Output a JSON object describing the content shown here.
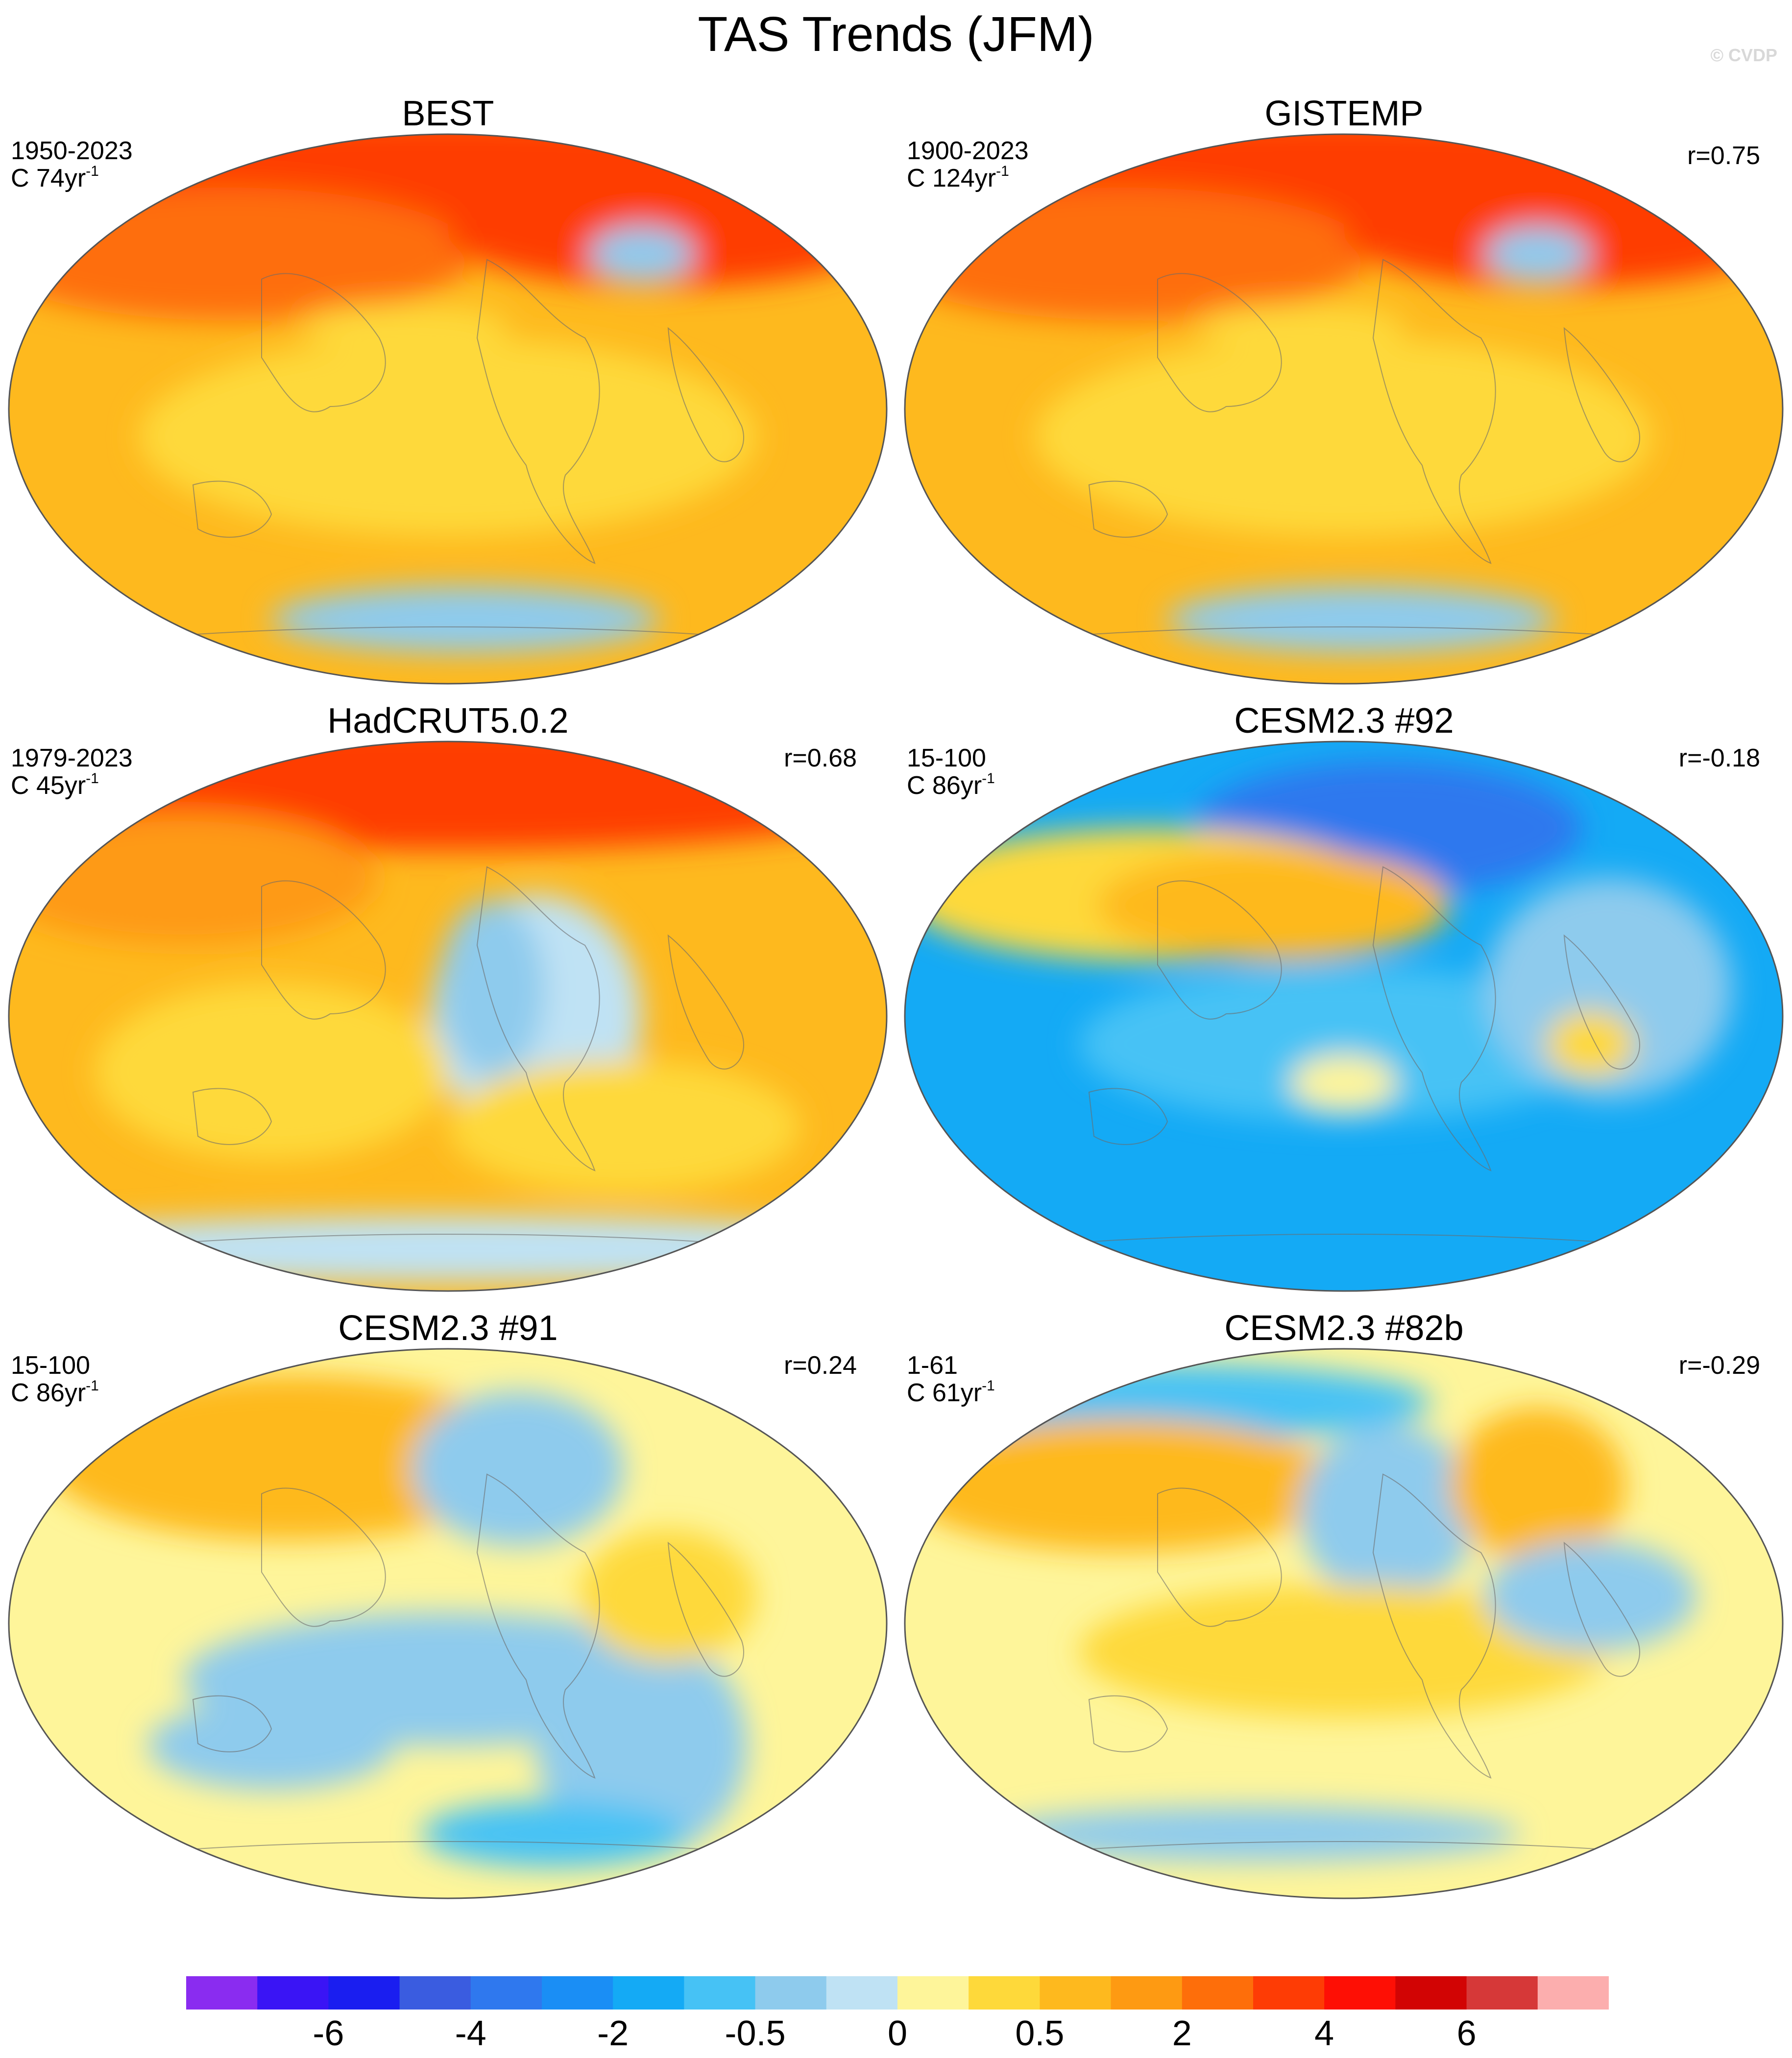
{
  "title": "TAS Trends (JFM)",
  "watermark": "© CVDP",
  "panels": [
    {
      "title": "BEST",
      "period": "1950-2023",
      "info_prefix": "C 74yr",
      "info_sup": "-1",
      "corr": "",
      "theme": "strong_warm"
    },
    {
      "title": "GISTEMP",
      "period": "1900-2023",
      "info_prefix": "C 124yr",
      "info_sup": "-1",
      "corr": "r=0.75",
      "theme": "strong_warm"
    },
    {
      "title": "HadCRUT5.0.2",
      "period": "1979-2023",
      "info_prefix": "C 45yr",
      "info_sup": "-1",
      "corr": "r=0.68",
      "theme": "warm_cool_pacific"
    },
    {
      "title": "CESM2.3 #92",
      "period": "15-100",
      "info_prefix": "C 86yr",
      "info_sup": "-1",
      "corr": "r=-0.18",
      "theme": "cool"
    },
    {
      "title": "CESM2.3 #91",
      "period": "15-100",
      "info_prefix": "C 86yr",
      "info_sup": "-1",
      "corr": "r=0.24",
      "theme": "mixed"
    },
    {
      "title": "CESM2.3 #82b",
      "period": "1-61",
      "info_prefix": "C 61yr",
      "info_sup": "-1",
      "corr": "r=-0.29",
      "theme": "mixed_cool_north"
    }
  ],
  "colorbar": {
    "colors": [
      "#8a2cf0",
      "#3a14f5",
      "#1a1ef0",
      "#3a5ce0",
      "#2f78ee",
      "#1a8ef5",
      "#14aaf5",
      "#46c2f5",
      "#8ecbed",
      "#bfe2f4",
      "#fef59a",
      "#fed93a",
      "#feb91e",
      "#fe9a12",
      "#fe6e0a",
      "#fe3c05",
      "#fe0f05",
      "#d20404",
      "#d63838",
      "#fcaeae"
    ],
    "labels": [
      "-6",
      "-4",
      "-2",
      "-0.5",
      "0",
      "0.5",
      "2",
      "4",
      "6"
    ]
  }
}
